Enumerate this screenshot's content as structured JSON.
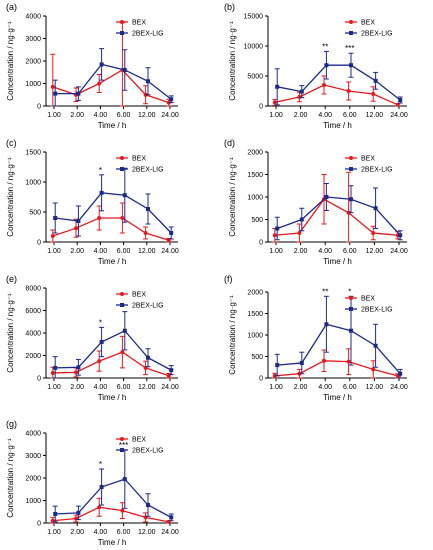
{
  "chart_data": [
    {
      "panel": "(a)",
      "type": "line",
      "categories": [
        "1.00",
        "2.00",
        "4.00",
        "6.00",
        "12.00",
        "24.00"
      ],
      "xlabel": "Time / h",
      "ylabel": "Concentration / ng·g⁻¹",
      "ylim": [
        0,
        4000
      ],
      "yticks": [
        "0",
        "1000",
        "2000",
        "3000",
        "4000"
      ],
      "legend": "top-right",
      "series": [
        {
          "name": "BEX",
          "color": "#e8191d",
          "values": [
            850,
            500,
            1000,
            1600,
            500,
            150
          ],
          "err": [
            1450,
            300,
            400,
            2100,
            400,
            150
          ]
        },
        {
          "name": "2BEX-LIG",
          "color": "#1c2a8d",
          "values": [
            550,
            550,
            1850,
            1600,
            1100,
            300
          ],
          "err": [
            600,
            300,
            700,
            900,
            600,
            150
          ]
        }
      ],
      "stars": [
        "",
        "",
        "",
        "",
        "",
        ""
      ]
    },
    {
      "panel": "(b)",
      "type": "line",
      "categories": [
        "1.00",
        "2.00",
        "4.00",
        "6.00",
        "12.00",
        "24.00"
      ],
      "xlabel": "Time / h",
      "ylabel": "Concentration / ng·g⁻¹",
      "ylim": [
        0,
        15000
      ],
      "yticks": [
        "0",
        "5000",
        "10000",
        "15000"
      ],
      "legend": "top-right",
      "series": [
        {
          "name": "BEX",
          "color": "#e8191d",
          "values": [
            600,
            1500,
            3500,
            2500,
            2000,
            200
          ],
          "err": [
            500,
            800,
            1500,
            1500,
            1200,
            200
          ]
        },
        {
          "name": "2BEX-LIG",
          "color": "#1c2a8d",
          "values": [
            3200,
            2400,
            6800,
            6800,
            4200,
            1000
          ],
          "err": [
            3000,
            1000,
            2300,
            2000,
            1400,
            500
          ]
        }
      ],
      "stars": [
        "",
        "",
        "**",
        "***",
        "",
        ""
      ]
    },
    {
      "panel": "(c)",
      "type": "line",
      "categories": [
        "1.00",
        "2.00",
        "4.00",
        "6.00",
        "12.00",
        "24.00"
      ],
      "xlabel": "Time / h",
      "ylabel": "Concentration / ng·g⁻¹",
      "ylim": [
        0,
        1500
      ],
      "yticks": [
        "0",
        "500",
        "1000",
        "1500"
      ],
      "legend": "top-right",
      "series": [
        {
          "name": "BEX",
          "color": "#e8191d",
          "values": [
            100,
            230,
            400,
            400,
            150,
            30
          ],
          "err": [
            100,
            150,
            200,
            250,
            100,
            30
          ]
        },
        {
          "name": "2BEX-LIG",
          "color": "#1c2a8d",
          "values": [
            400,
            350,
            820,
            780,
            550,
            150
          ],
          "err": [
            250,
            250,
            300,
            450,
            250,
            100
          ]
        }
      ],
      "stars": [
        "",
        "",
        "*",
        "",
        "",
        ""
      ]
    },
    {
      "panel": "(d)",
      "type": "line",
      "categories": [
        "1.00",
        "2.00",
        "4.00",
        "6.00",
        "12.00",
        "24.00"
      ],
      "xlabel": "Time / h",
      "ylabel": "Concentration / ng·g⁻¹",
      "ylim": [
        0,
        2000
      ],
      "yticks": [
        "0",
        "500",
        "1000",
        "1500",
        "2000"
      ],
      "legend": "top-right",
      "series": [
        {
          "name": "BEX",
          "color": "#e8191d",
          "values": [
            150,
            200,
            950,
            650,
            200,
            150
          ],
          "err": [
            150,
            200,
            550,
            900,
            150,
            80
          ]
        },
        {
          "name": "2BEX-LIG",
          "color": "#1c2a8d",
          "values": [
            300,
            500,
            1000,
            950,
            750,
            150
          ],
          "err": [
            250,
            250,
            300,
            300,
            450,
            100
          ]
        }
      ],
      "stars": [
        "",
        "",
        "",
        "",
        "",
        ""
      ]
    },
    {
      "panel": "(e)",
      "type": "line",
      "categories": [
        "1.00",
        "2.00",
        "4.00",
        "6.00",
        "12.00",
        "24.00"
      ],
      "xlabel": "Time / h",
      "ylabel": "Concentration / ng·g⁻¹",
      "ylim": [
        0,
        8000
      ],
      "yticks": [
        "0",
        "2000",
        "4000",
        "6000",
        "8000"
      ],
      "legend": "top-right",
      "series": [
        {
          "name": "BEX",
          "color": "#e8191d",
          "values": [
            450,
            500,
            1500,
            2300,
            900,
            200
          ],
          "err": [
            500,
            400,
            900,
            1400,
            600,
            200
          ]
        },
        {
          "name": "2BEX-LIG",
          "color": "#1c2a8d",
          "values": [
            900,
            950,
            3200,
            4200,
            1800,
            700
          ],
          "err": [
            1000,
            700,
            1300,
            1700,
            800,
            400
          ]
        }
      ],
      "stars": [
        "",
        "",
        "*",
        "*",
        "",
        ""
      ]
    },
    {
      "panel": "(f)",
      "type": "line",
      "categories": [
        "1.00",
        "2.00",
        "4.00",
        "6.00",
        "12.00",
        "24.00"
      ],
      "xlabel": "Time / h",
      "ylabel": "Concentration / ng·g⁻¹",
      "ylim": [
        0,
        2000
      ],
      "yticks": [
        "0",
        "500",
        "1000",
        "1500",
        "2000"
      ],
      "legend": "top-right",
      "series": [
        {
          "name": "BEX",
          "color": "#e8191d",
          "values": [
            50,
            100,
            400,
            380,
            200,
            50
          ],
          "err": [
            60,
            100,
            250,
            300,
            200,
            50
          ]
        },
        {
          "name": "2BEX-LIG",
          "color": "#1c2a8d",
          "values": [
            300,
            350,
            1250,
            1100,
            750,
            100
          ],
          "err": [
            250,
            250,
            650,
            800,
            500,
            100
          ]
        }
      ],
      "stars": [
        "",
        "",
        "**",
        "*",
        "",
        ""
      ]
    },
    {
      "panel": "(g)",
      "type": "line",
      "categories": [
        "1.00",
        "2.00",
        "4.00",
        "6.00",
        "12.00",
        "24.00"
      ],
      "xlabel": "Time / h",
      "ylabel": "Concentration / ng·g⁻¹",
      "ylim": [
        0,
        4000
      ],
      "yticks": [
        "0",
        "1000",
        "2000",
        "3000",
        "4000"
      ],
      "legend": "top-right",
      "series": [
        {
          "name": "BEX",
          "color": "#e8191d",
          "values": [
            100,
            200,
            700,
            550,
            250,
            50
          ],
          "err": [
            150,
            150,
            400,
            350,
            200,
            50
          ]
        },
        {
          "name": "2BEX-LIG",
          "color": "#1c2a8d",
          "values": [
            400,
            450,
            1600,
            1950,
            800,
            250
          ],
          "err": [
            350,
            300,
            800,
            1300,
            500,
            150
          ]
        }
      ],
      "stars": [
        "",
        "",
        "*",
        "***",
        "",
        ""
      ]
    }
  ]
}
